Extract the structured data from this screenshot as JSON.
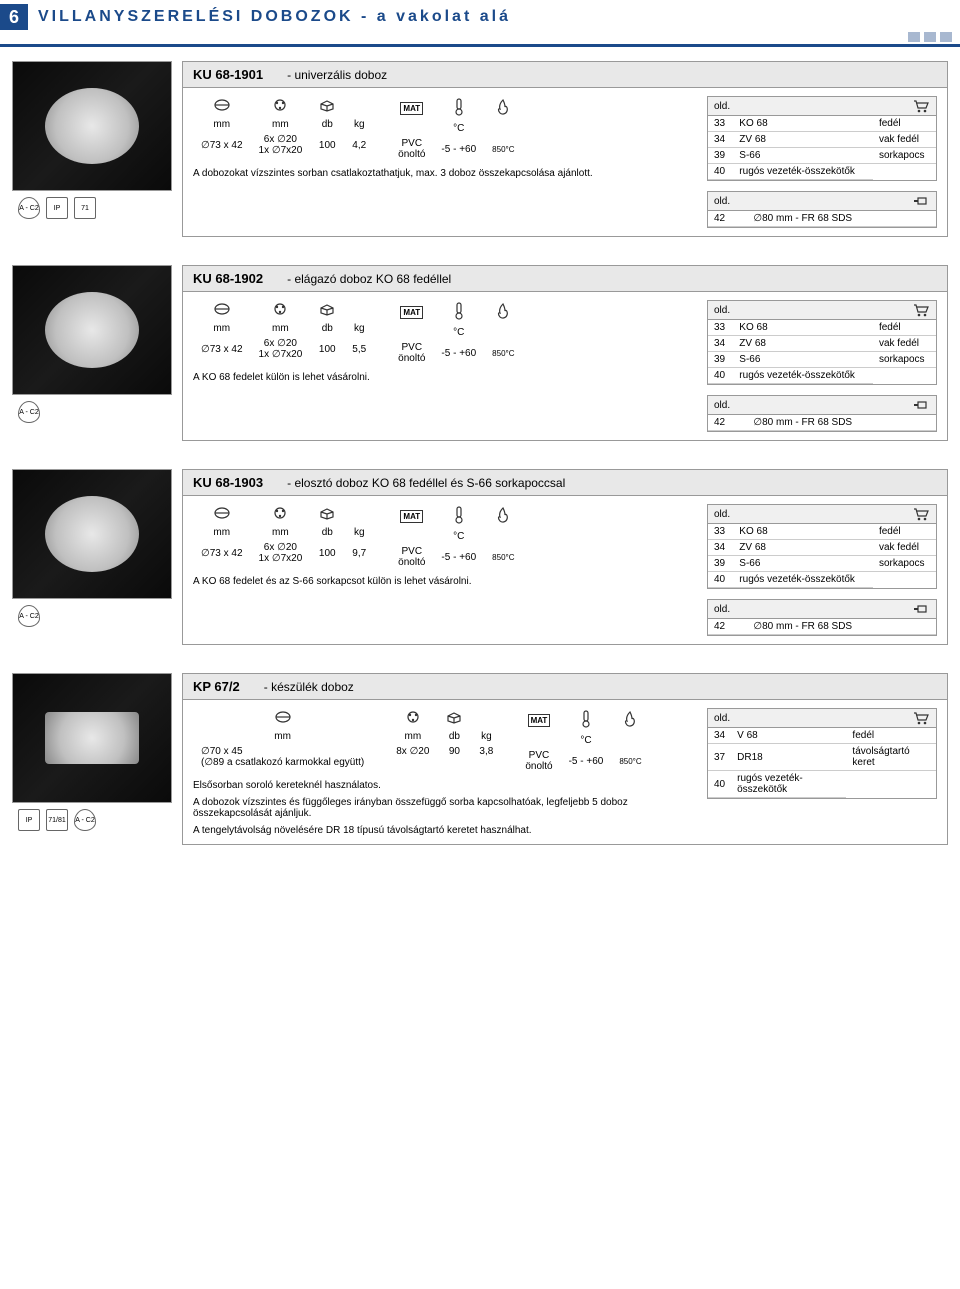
{
  "header": {
    "page_number": "6",
    "title": "VILLANYSZERELÉSI DOBOZOK - a vakolat alá"
  },
  "products": [
    {
      "code": "KU 68-1901",
      "name": "- univerzális doboz",
      "spec_headers": [
        "mm",
        "mm",
        "db",
        "kg"
      ],
      "spec_row": [
        "∅73 x 42",
        "6x ∅20\n1x ∅7x20",
        "100",
        "4,2"
      ],
      "material": "PVC\nönoltó",
      "temp_label": "°C",
      "temp": "-5 - +60",
      "fire": "850°C",
      "note": "A dobozokat vízszintes sorban csatlakoztathatjuk, max. 3 doboz összekapcsolása ajánlott.",
      "refs_a_label": "old.",
      "refs_a": [
        [
          "33",
          "KO 68",
          "fedél"
        ],
        [
          "34",
          "ZV 68",
          "vak fedél"
        ],
        [
          "39",
          "S-66",
          "sorkapocs"
        ],
        [
          "40",
          "rugós vezeték-összekötők",
          ""
        ]
      ],
      "refs_b_label": "old.",
      "refs_b": [
        [
          "42",
          "∅80 mm - FR 68 SDS",
          ""
        ]
      ],
      "badges": [
        "A - C2",
        "IP",
        "71"
      ]
    },
    {
      "code": "KU 68-1902",
      "name": "- elágazó doboz KO 68 fedéllel",
      "spec_headers": [
        "mm",
        "mm",
        "db",
        "kg"
      ],
      "spec_row": [
        "∅73 x 42",
        "6x ∅20\n1x ∅7x20",
        "100",
        "5,5"
      ],
      "material": "PVC\nönoltó",
      "temp_label": "°C",
      "temp": "-5 - +60",
      "fire": "850°C",
      "note": "A KO 68 fedelet külön is lehet vásárolni.",
      "refs_a_label": "old.",
      "refs_a": [
        [
          "33",
          "KO 68",
          "fedél"
        ],
        [
          "34",
          "ZV 68",
          "vak fedél"
        ],
        [
          "39",
          "S-66",
          "sorkapocs"
        ],
        [
          "40",
          "rugós vezeték-összekötők",
          ""
        ]
      ],
      "refs_b_label": "old.",
      "refs_b": [
        [
          "42",
          "∅80 mm - FR 68 SDS",
          ""
        ]
      ],
      "badges": [
        "A - C2"
      ]
    },
    {
      "code": "KU 68-1903",
      "name": "- elosztó doboz KO 68 fedéllel és S-66 sorkapoccsal",
      "spec_headers": [
        "mm",
        "mm",
        "db",
        "kg"
      ],
      "spec_row": [
        "∅73 x 42",
        "6x ∅20\n1x ∅7x20",
        "100",
        "9,7"
      ],
      "material": "PVC\nönoltó",
      "temp_label": "°C",
      "temp": "-5 - +60",
      "fire": "850°C",
      "note": "A KO 68 fedelet és az S-66 sorkapcsot külön is lehet vásárolni.",
      "refs_a_label": "old.",
      "refs_a": [
        [
          "33",
          "KO 68",
          "fedél"
        ],
        [
          "34",
          "ZV 68",
          "vak fedél"
        ],
        [
          "39",
          "S-66",
          "sorkapocs"
        ],
        [
          "40",
          "rugós vezeték-összekötők",
          ""
        ]
      ],
      "refs_b_label": "old.",
      "refs_b": [
        [
          "42",
          "∅80 mm - FR 68 SDS",
          ""
        ]
      ],
      "badges": [
        "A - C2"
      ]
    },
    {
      "code": "KP 67/2",
      "name": "- készülék doboz",
      "spec_headers_a": [
        "mm"
      ],
      "spec_row_a": [
        "∅70 x 45\n(∅89 a csatlakozó karmokkal együtt)"
      ],
      "spec_headers_b": [
        "mm",
        "db",
        "kg"
      ],
      "spec_row_b": [
        "8x ∅20",
        "90",
        "3,8"
      ],
      "material": "PVC\nönoltó",
      "temp_label": "°C",
      "temp": "-5 - +60",
      "fire": "850°C",
      "note1": "Elsősorban soroló kereteknél használatos.",
      "note2": "A dobozok vízszintes és függőleges irányban összefüggő sorba kapcsolhatóak, legfeljebb 5 doboz összekapcsolását ajánljuk.",
      "note3": "A tengelytávolság növelésére DR 18 típusú távolságtartó keretet használhat.",
      "refs_a_label": "old.",
      "refs_a": [
        [
          "34",
          "V 68",
          "fedél"
        ],
        [
          "37",
          "DR18",
          "távolságtartó keret"
        ],
        [
          "40",
          "rugós vezeték-összekötők",
          ""
        ]
      ],
      "badges": [
        "IP",
        "71/81",
        "A - C2"
      ]
    }
  ],
  "colors": {
    "accent": "#1b4a8a",
    "border": "#999999",
    "header_bg": "#e8e8e8"
  }
}
